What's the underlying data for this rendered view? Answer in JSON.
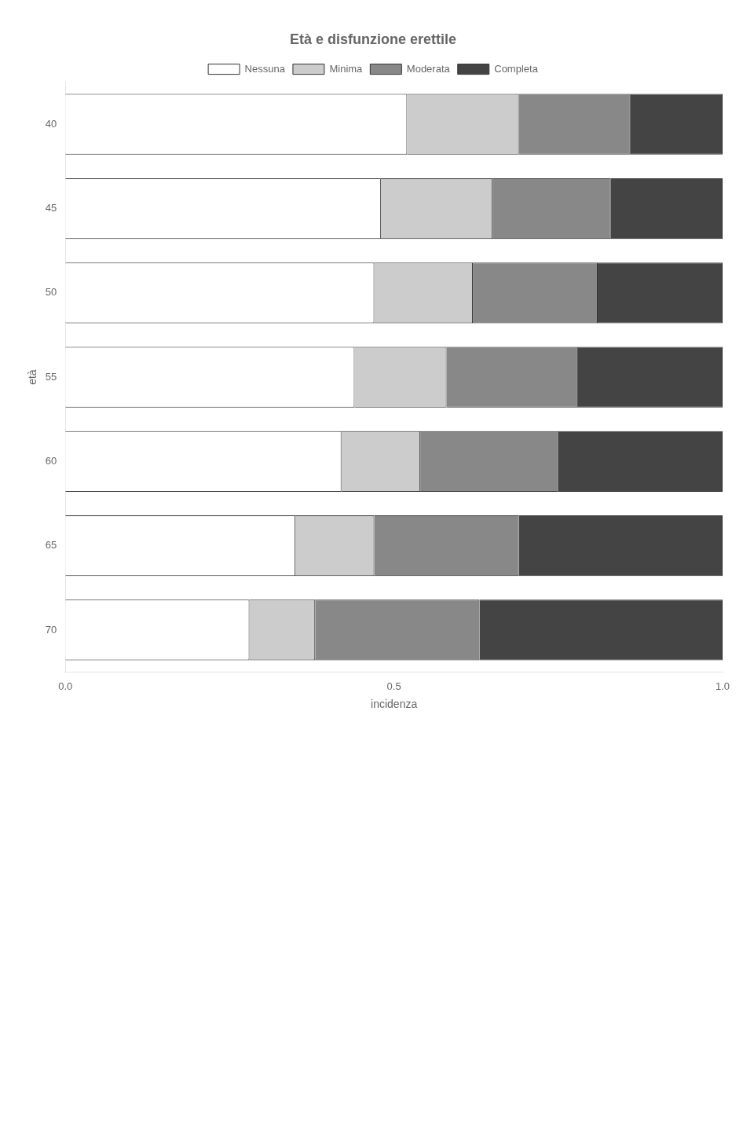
{
  "chart_data": {
    "type": "bar",
    "orientation": "horizontal",
    "stacked": true,
    "title": "Età e disfunzione erettile",
    "xlabel": "incidenza",
    "ylabel": "età",
    "categories": [
      40,
      45,
      50,
      55,
      60,
      65,
      70
    ],
    "series": [
      {
        "name": "Nessuna",
        "color": "#ffffff",
        "values": [
          0.52,
          0.48,
          0.47,
          0.44,
          0.42,
          0.35,
          0.28
        ]
      },
      {
        "name": "Minima",
        "color": "#cccccc",
        "values": [
          0.17,
          0.17,
          0.15,
          0.14,
          0.12,
          0.12,
          0.1
        ]
      },
      {
        "name": "Moderata",
        "color": "#888888",
        "values": [
          0.17,
          0.18,
          0.19,
          0.2,
          0.21,
          0.22,
          0.25
        ]
      },
      {
        "name": "Completa",
        "color": "#444444",
        "values": [
          0.14,
          0.17,
          0.19,
          0.22,
          0.25,
          0.31,
          0.37
        ]
      }
    ],
    "xlim": [
      0,
      1
    ],
    "xticks": [
      {
        "value": 0,
        "label": "0.0"
      },
      0.5,
      {
        "value": 1,
        "label": "1.0"
      }
    ],
    "grid": false,
    "legend": "top"
  }
}
